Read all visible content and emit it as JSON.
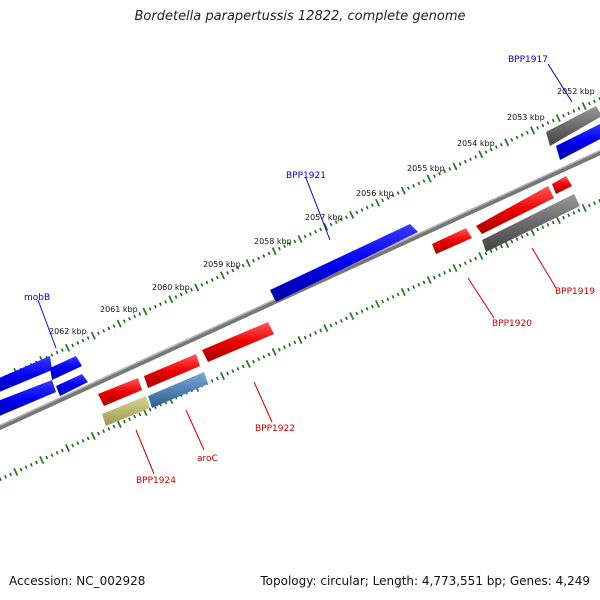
{
  "title": "Bordetella parapertussis 12822, complete genome",
  "footer": {
    "accession": "Accession: NC_002928",
    "summary": "Topology: circular; Length: 4,773,551 bp; Genes: 4,249"
  },
  "scale_labels": [
    "2052 kbp",
    "2053 kbp",
    "2054 kbp",
    "2055 kbp",
    "2056 kbp",
    "2057 kbp",
    "2058 kbp",
    "2059 kbp",
    "2060 kbp",
    "2061 kbp",
    "2062 kbp"
  ],
  "gene_labels": [
    {
      "text": "BPP1917",
      "color": "#0000cc"
    },
    {
      "text": "BPP1921",
      "color": "#0000cc"
    },
    {
      "text": "mobB",
      "color": "#0000cc"
    },
    {
      "text": "BPP1919",
      "color": "#cc0000"
    },
    {
      "text": "BPP1920",
      "color": "#cc0000"
    },
    {
      "text": "BPP1922",
      "color": "#cc0000"
    },
    {
      "text": "aroC",
      "color": "#cc0000"
    },
    {
      "text": "BPP1924",
      "color": "#cc0000"
    }
  ],
  "colors": {
    "forward_gene": "#0000ee",
    "reverse_gene": "#ee0000",
    "pseudo_gene": "#6b6b6b",
    "olive_gene": "#b8b86a",
    "steel_gene": "#4a82b8",
    "backbone": "#7a7a7a",
    "tick_major": "#2a7a2a",
    "tick_minor": "#2a7a2a"
  }
}
